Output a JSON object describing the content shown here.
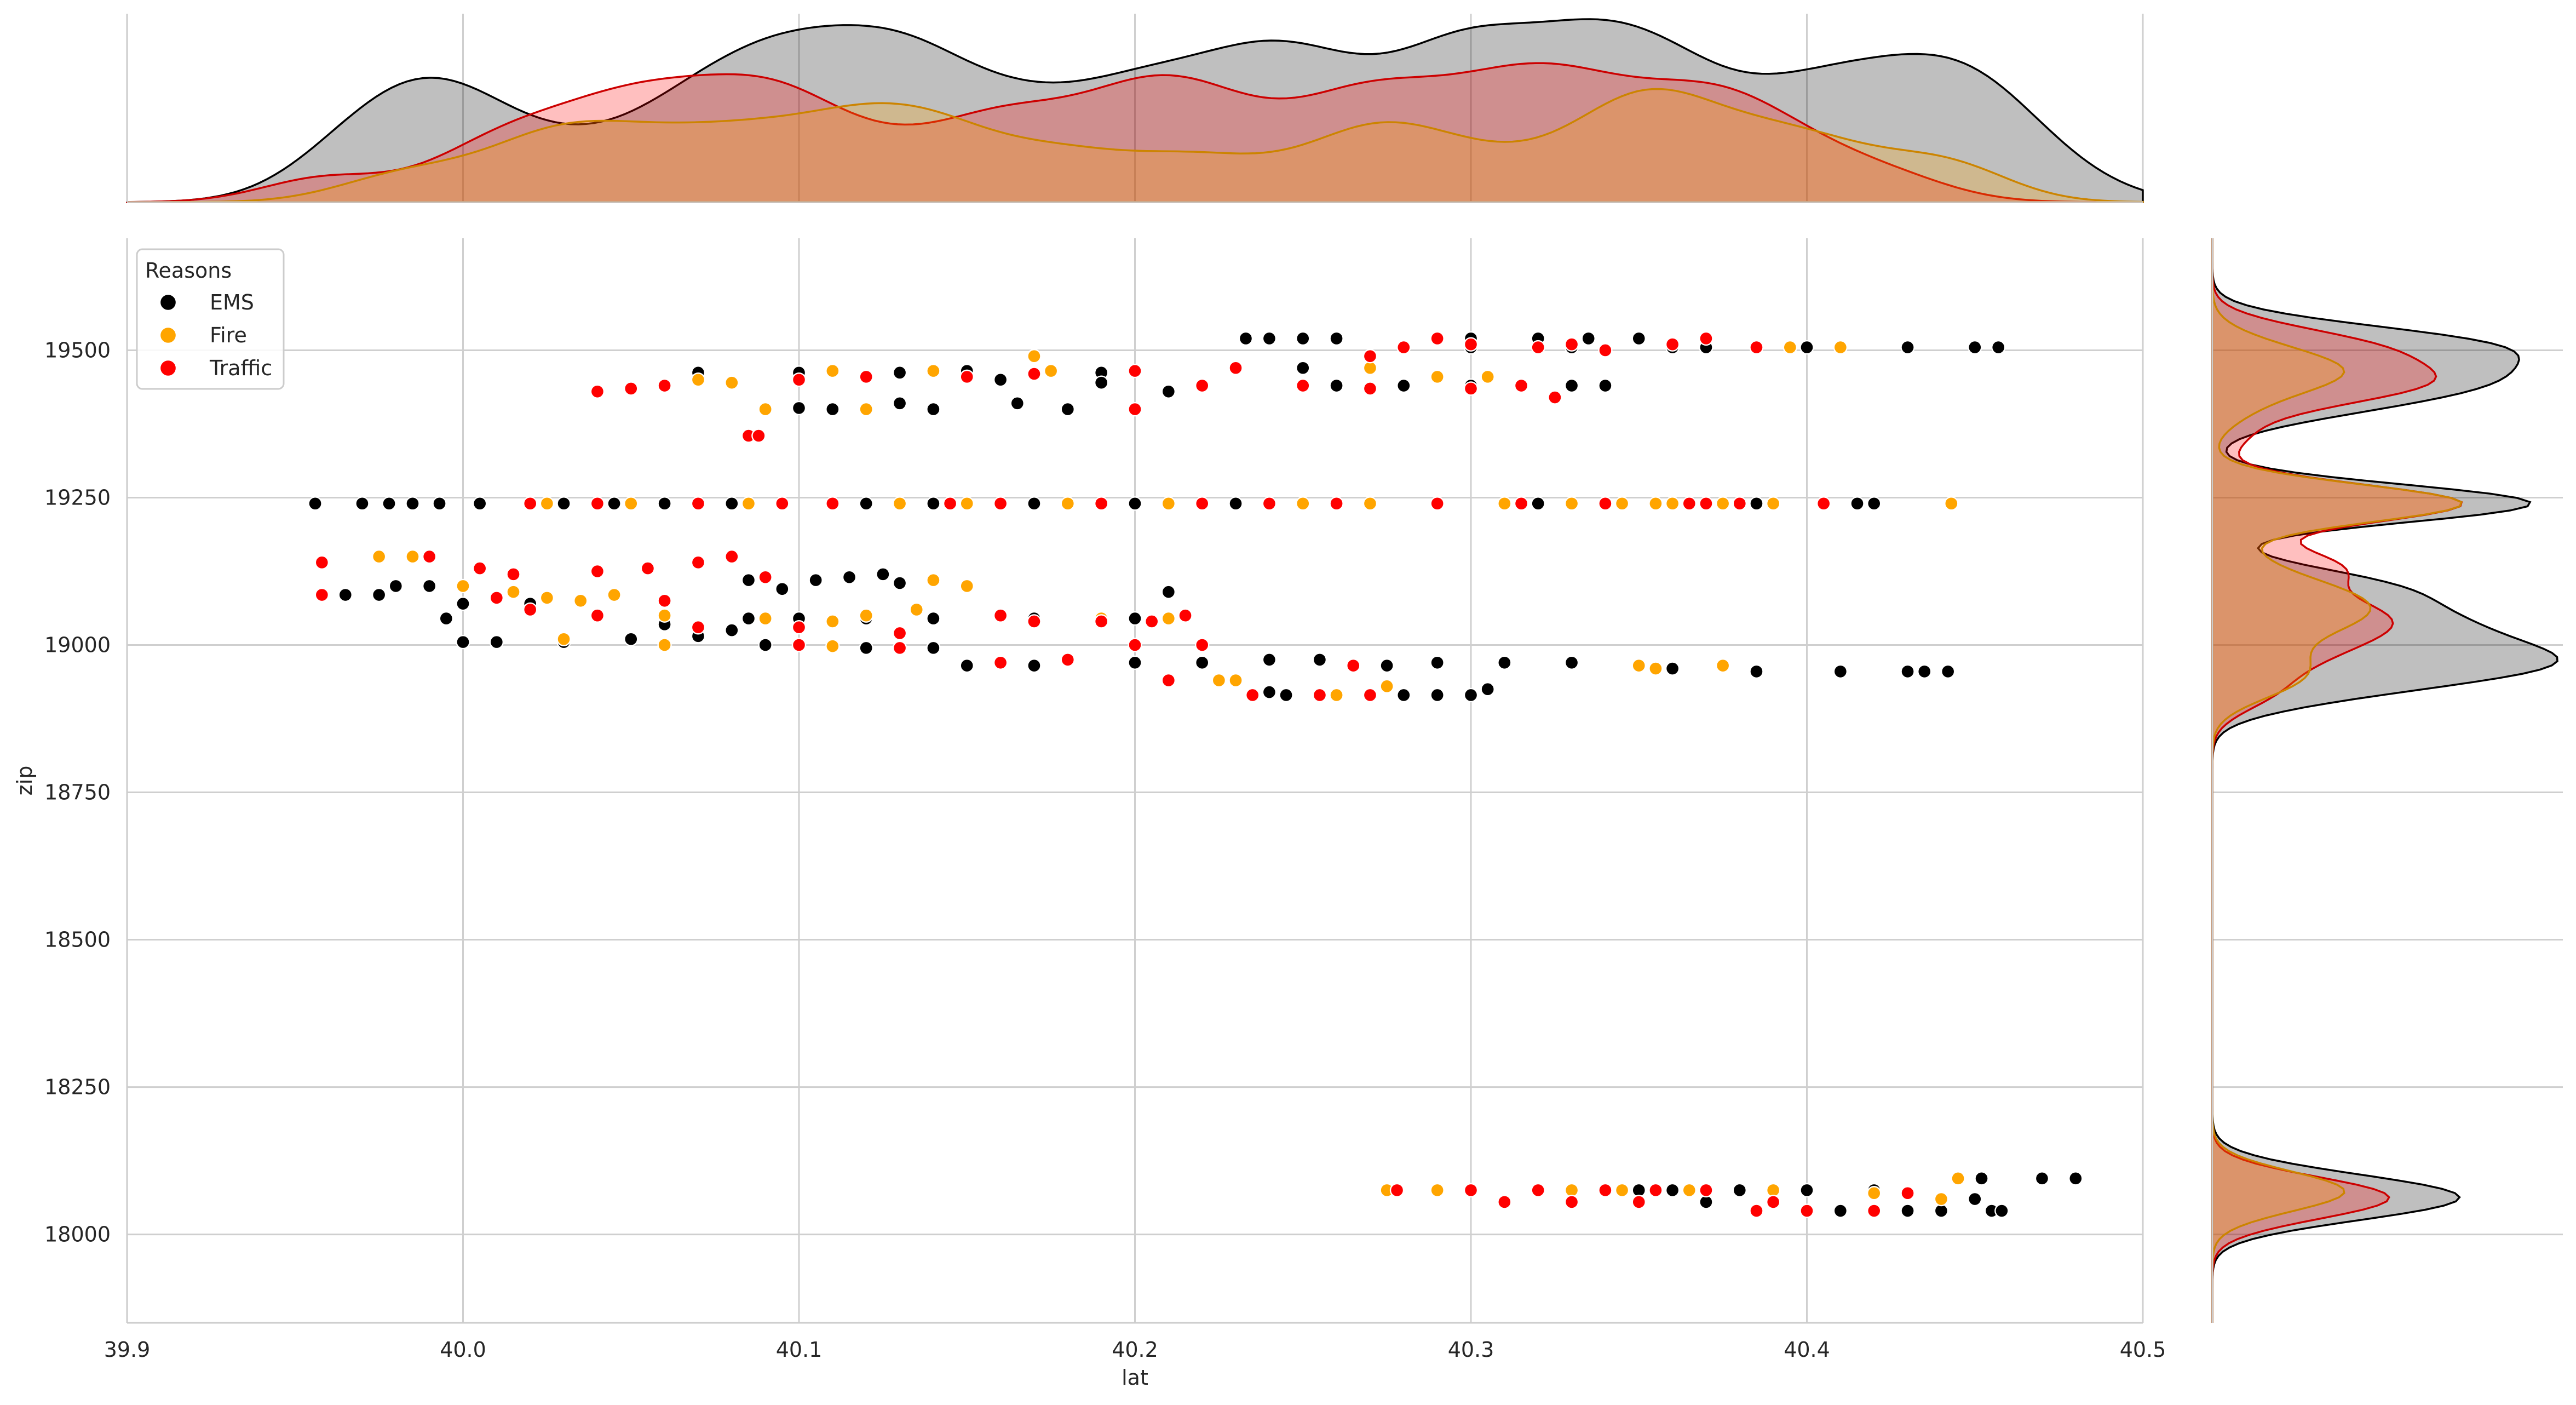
{
  "chart_data": {
    "type": "scatter",
    "xlabel": "lat",
    "ylabel": "zip",
    "xlim": [
      39.9,
      40.5
    ],
    "ylim": [
      17850,
      19690
    ],
    "x_ticks": [
      "39.9",
      "40.0",
      "40.1",
      "40.2",
      "40.3",
      "40.4",
      "40.5"
    ],
    "y_ticks": [
      "18000",
      "18250",
      "18500",
      "18750",
      "19000",
      "19250",
      "19500"
    ],
    "grid": true,
    "legend": {
      "title": "Reasons",
      "placement": "top-left"
    },
    "marginal_x": "kde",
    "marginal_y": "kde",
    "series": [
      {
        "name": "EMS",
        "color": "#000000",
        "points": [
          [
            39.956,
            19240
          ],
          [
            39.97,
            19240
          ],
          [
            39.978,
            19240
          ],
          [
            39.985,
            19240
          ],
          [
            39.993,
            19240
          ],
          [
            40.005,
            19240
          ],
          [
            40.03,
            19240
          ],
          [
            40.045,
            19240
          ],
          [
            40.06,
            19240
          ],
          [
            40.08,
            19240
          ],
          [
            40.12,
            19240
          ],
          [
            40.14,
            19240
          ],
          [
            40.17,
            19240
          ],
          [
            40.2,
            19240
          ],
          [
            40.23,
            19240
          ],
          [
            40.26,
            19240
          ],
          [
            40.29,
            19240
          ],
          [
            40.32,
            19240
          ],
          [
            40.34,
            19240
          ],
          [
            40.36,
            19240
          ],
          [
            40.385,
            19240
          ],
          [
            40.415,
            19240
          ],
          [
            40.42,
            19240
          ],
          [
            40.233,
            19520
          ],
          [
            40.24,
            19520
          ],
          [
            40.25,
            19520
          ],
          [
            40.26,
            19520
          ],
          [
            40.3,
            19520
          ],
          [
            40.32,
            19520
          ],
          [
            40.335,
            19520
          ],
          [
            40.35,
            19520
          ],
          [
            40.3,
            19505
          ],
          [
            40.33,
            19505
          ],
          [
            40.36,
            19505
          ],
          [
            40.37,
            19505
          ],
          [
            40.395,
            19505
          ],
          [
            40.4,
            19505
          ],
          [
            40.43,
            19505
          ],
          [
            40.45,
            19505
          ],
          [
            40.457,
            19505
          ],
          [
            40.23,
            19470
          ],
          [
            40.25,
            19470
          ],
          [
            40.27,
            19470
          ],
          [
            40.15,
            19465
          ],
          [
            40.19,
            19462
          ],
          [
            40.07,
            19462
          ],
          [
            40.1,
            19462
          ],
          [
            40.13,
            19462
          ],
          [
            40.16,
            19450
          ],
          [
            40.19,
            19445
          ],
          [
            40.22,
            19440
          ],
          [
            40.26,
            19440
          ],
          [
            40.28,
            19440
          ],
          [
            40.3,
            19440
          ],
          [
            40.33,
            19440
          ],
          [
            40.34,
            19440
          ],
          [
            40.11,
            19400
          ],
          [
            40.14,
            19400
          ],
          [
            40.18,
            19400
          ],
          [
            40.2,
            19400
          ],
          [
            40.1,
            19402
          ],
          [
            40.13,
            19410
          ],
          [
            40.165,
            19410
          ],
          [
            40.21,
            19430
          ],
          [
            39.965,
            19085
          ],
          [
            39.975,
            19085
          ],
          [
            39.98,
            19100
          ],
          [
            39.99,
            19100
          ],
          [
            40.0,
            19070
          ],
          [
            40.02,
            19070
          ],
          [
            39.995,
            19045
          ],
          [
            40.0,
            19005
          ],
          [
            40.01,
            19005
          ],
          [
            40.03,
            19005
          ],
          [
            40.05,
            19010
          ],
          [
            40.07,
            19015
          ],
          [
            40.09,
            19000
          ],
          [
            40.1,
            19000
          ],
          [
            40.12,
            18995
          ],
          [
            40.14,
            18995
          ],
          [
            40.085,
            19045
          ],
          [
            40.1,
            19045
          ],
          [
            40.12,
            19045
          ],
          [
            40.14,
            19045
          ],
          [
            40.17,
            19045
          ],
          [
            40.2,
            19045
          ],
          [
            40.105,
            19110
          ],
          [
            40.115,
            19115
          ],
          [
            40.125,
            19120
          ],
          [
            40.13,
            19105
          ],
          [
            40.085,
            19110
          ],
          [
            40.095,
            19095
          ],
          [
            40.06,
            19035
          ],
          [
            40.07,
            19030
          ],
          [
            40.08,
            19025
          ],
          [
            40.15,
            18965
          ],
          [
            40.17,
            18965
          ],
          [
            40.2,
            18970
          ],
          [
            40.22,
            18970
          ],
          [
            40.24,
            18975
          ],
          [
            40.255,
            18975
          ],
          [
            40.21,
            19090
          ],
          [
            40.225,
            18940
          ],
          [
            40.24,
            18920
          ],
          [
            40.245,
            18915
          ],
          [
            40.28,
            18915
          ],
          [
            40.29,
            18915
          ],
          [
            40.3,
            18915
          ],
          [
            40.305,
            18925
          ],
          [
            40.275,
            18965
          ],
          [
            40.29,
            18970
          ],
          [
            40.31,
            18970
          ],
          [
            40.33,
            18970
          ],
          [
            40.35,
            18965
          ],
          [
            40.36,
            18960
          ],
          [
            40.385,
            18955
          ],
          [
            40.41,
            18955
          ],
          [
            40.43,
            18955
          ],
          [
            40.435,
            18955
          ],
          [
            40.442,
            18955
          ],
          [
            40.3,
            18075
          ],
          [
            40.33,
            18075
          ],
          [
            40.35,
            18075
          ],
          [
            40.36,
            18075
          ],
          [
            40.38,
            18075
          ],
          [
            40.4,
            18075
          ],
          [
            40.42,
            18075
          ],
          [
            40.31,
            18055
          ],
          [
            40.33,
            18055
          ],
          [
            40.35,
            18055
          ],
          [
            40.37,
            18055
          ],
          [
            40.4,
            18040
          ],
          [
            40.41,
            18040
          ],
          [
            40.43,
            18040
          ],
          [
            40.44,
            18040
          ],
          [
            40.45,
            18060
          ],
          [
            40.455,
            18040
          ],
          [
            40.458,
            18040
          ],
          [
            40.452,
            18095
          ],
          [
            40.47,
            18095
          ],
          [
            40.48,
            18095
          ]
        ]
      },
      {
        "name": "Fire",
        "color": "#ffa500",
        "points": [
          [
            40.025,
            19240
          ],
          [
            40.05,
            19240
          ],
          [
            40.085,
            19240
          ],
          [
            40.13,
            19240
          ],
          [
            40.15,
            19240
          ],
          [
            40.18,
            19240
          ],
          [
            40.21,
            19240
          ],
          [
            40.25,
            19240
          ],
          [
            40.27,
            19240
          ],
          [
            40.31,
            19240
          ],
          [
            40.33,
            19240
          ],
          [
            40.345,
            19240
          ],
          [
            40.355,
            19240
          ],
          [
            40.36,
            19240
          ],
          [
            40.375,
            19240
          ],
          [
            40.39,
            19240
          ],
          [
            40.405,
            19240
          ],
          [
            40.443,
            19240
          ],
          [
            40.11,
            19465
          ],
          [
            40.14,
            19465
          ],
          [
            40.17,
            19490
          ],
          [
            40.175,
            19465
          ],
          [
            40.27,
            19470
          ],
          [
            40.29,
            19455
          ],
          [
            40.305,
            19455
          ],
          [
            40.09,
            19400
          ],
          [
            40.12,
            19400
          ],
          [
            40.07,
            19450
          ],
          [
            40.08,
            19445
          ],
          [
            40.395,
            19505
          ],
          [
            40.41,
            19505
          ],
          [
            39.975,
            19150
          ],
          [
            39.985,
            19150
          ],
          [
            40.0,
            19100
          ],
          [
            40.015,
            19090
          ],
          [
            40.025,
            19080
          ],
          [
            40.035,
            19075
          ],
          [
            40.045,
            19085
          ],
          [
            40.06,
            19050
          ],
          [
            40.09,
            19045
          ],
          [
            40.11,
            19040
          ],
          [
            40.12,
            19050
          ],
          [
            40.135,
            19060
          ],
          [
            40.14,
            19110
          ],
          [
            40.15,
            19100
          ],
          [
            40.19,
            19045
          ],
          [
            40.21,
            19045
          ],
          [
            40.03,
            19010
          ],
          [
            40.06,
            19000
          ],
          [
            40.11,
            18998
          ],
          [
            40.225,
            18940
          ],
          [
            40.23,
            18940
          ],
          [
            40.26,
            18915
          ],
          [
            40.275,
            18930
          ],
          [
            40.35,
            18965
          ],
          [
            40.375,
            18965
          ],
          [
            40.355,
            18960
          ],
          [
            40.275,
            18075
          ],
          [
            40.29,
            18075
          ],
          [
            40.33,
            18075
          ],
          [
            40.345,
            18075
          ],
          [
            40.365,
            18075
          ],
          [
            40.39,
            18075
          ],
          [
            40.42,
            18070
          ],
          [
            40.35,
            18055
          ],
          [
            40.445,
            18095
          ],
          [
            40.44,
            18060
          ]
        ]
      },
      {
        "name": "Traffic",
        "color": "#ff0000",
        "points": [
          [
            40.02,
            19240
          ],
          [
            40.04,
            19240
          ],
          [
            40.07,
            19240
          ],
          [
            40.095,
            19240
          ],
          [
            40.11,
            19240
          ],
          [
            40.145,
            19240
          ],
          [
            40.16,
            19240
          ],
          [
            40.19,
            19240
          ],
          [
            40.22,
            19240
          ],
          [
            40.24,
            19240
          ],
          [
            40.26,
            19240
          ],
          [
            40.29,
            19240
          ],
          [
            40.315,
            19240
          ],
          [
            40.34,
            19240
          ],
          [
            40.365,
            19240
          ],
          [
            40.37,
            19240
          ],
          [
            40.38,
            19240
          ],
          [
            40.405,
            19240
          ],
          [
            40.085,
            19355
          ],
          [
            40.088,
            19355
          ],
          [
            39.958,
            19140
          ],
          [
            39.958,
            19085
          ],
          [
            39.99,
            19150
          ],
          [
            40.005,
            19130
          ],
          [
            40.015,
            19120
          ],
          [
            40.04,
            19125
          ],
          [
            40.055,
            19130
          ],
          [
            40.07,
            19140
          ],
          [
            40.08,
            19150
          ],
          [
            40.09,
            19115
          ],
          [
            40.01,
            19080
          ],
          [
            40.02,
            19060
          ],
          [
            40.04,
            19050
          ],
          [
            40.06,
            19075
          ],
          [
            40.07,
            19030
          ],
          [
            40.1,
            19030
          ],
          [
            40.13,
            19020
          ],
          [
            40.16,
            19050
          ],
          [
            40.17,
            19040
          ],
          [
            40.19,
            19040
          ],
          [
            40.205,
            19040
          ],
          [
            40.215,
            19050
          ],
          [
            40.1,
            19000
          ],
          [
            40.13,
            18995
          ],
          [
            40.16,
            18970
          ],
          [
            40.18,
            18975
          ],
          [
            40.2,
            19000
          ],
          [
            40.22,
            19000
          ],
          [
            40.21,
            18940
          ],
          [
            40.235,
            18915
          ],
          [
            40.255,
            18915
          ],
          [
            40.27,
            18915
          ],
          [
            40.265,
            18965
          ],
          [
            40.04,
            19430
          ],
          [
            40.05,
            19435
          ],
          [
            40.06,
            19440
          ],
          [
            40.1,
            19450
          ],
          [
            40.12,
            19455
          ],
          [
            40.15,
            19455
          ],
          [
            40.17,
            19460
          ],
          [
            40.2,
            19465
          ],
          [
            40.23,
            19470
          ],
          [
            40.27,
            19490
          ],
          [
            40.28,
            19505
          ],
          [
            40.29,
            19520
          ],
          [
            40.3,
            19510
          ],
          [
            40.32,
            19505
          ],
          [
            40.33,
            19510
          ],
          [
            40.34,
            19500
          ],
          [
            40.36,
            19510
          ],
          [
            40.37,
            19520
          ],
          [
            40.385,
            19505
          ],
          [
            40.2,
            19400
          ],
          [
            40.22,
            19440
          ],
          [
            40.25,
            19440
          ],
          [
            40.27,
            19435
          ],
          [
            40.3,
            19435
          ],
          [
            40.325,
            19420
          ],
          [
            40.315,
            19440
          ],
          [
            40.278,
            18075
          ],
          [
            40.3,
            18075
          ],
          [
            40.32,
            18075
          ],
          [
            40.34,
            18075
          ],
          [
            40.355,
            18075
          ],
          [
            40.37,
            18075
          ],
          [
            40.31,
            18055
          ],
          [
            40.33,
            18055
          ],
          [
            40.35,
            18055
          ],
          [
            40.385,
            18040
          ],
          [
            40.4,
            18040
          ],
          [
            40.42,
            18040
          ],
          [
            40.43,
            18070
          ],
          [
            40.39,
            18055
          ]
        ]
      }
    ]
  }
}
